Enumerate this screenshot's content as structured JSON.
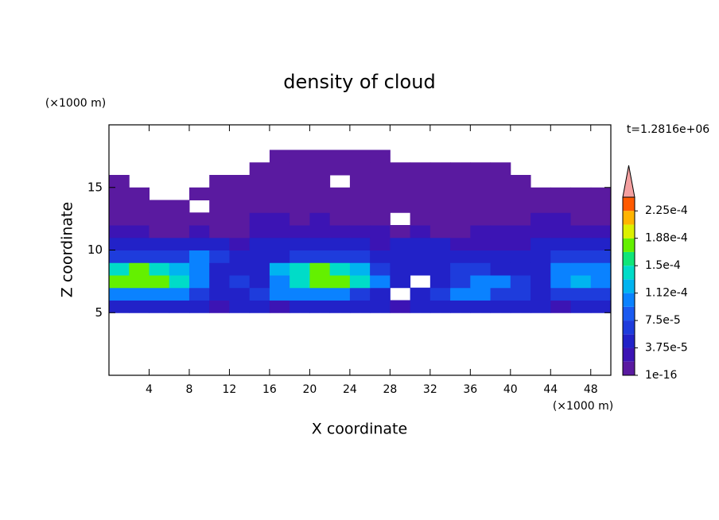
{
  "chart_data": {
    "type": "contour",
    "title": "density of cloud",
    "y_unit": "(×1000 m)",
    "x_unit": "(×1000 m)",
    "ylabel": "Z coordinate",
    "xlabel": "X coordinate",
    "annotation": "t=1.2816e+06",
    "xlim": [
      0,
      50
    ],
    "ylim": [
      0,
      20
    ],
    "xticks": [
      4,
      8,
      12,
      16,
      20,
      24,
      28,
      32,
      36,
      40,
      44,
      48
    ],
    "yticks": [
      5,
      10,
      15
    ],
    "x": [
      1,
      3,
      5,
      7,
      9,
      11,
      13,
      15,
      17,
      19,
      21,
      23,
      25,
      27,
      29,
      31,
      33,
      35,
      37,
      39,
      41,
      43,
      45,
      47,
      49
    ],
    "z": [
      5.5,
      6.5,
      7.5,
      8.5,
      9.5,
      10.5,
      11.5,
      12.5,
      13.5,
      14.5,
      15.5,
      16.5,
      17.5
    ],
    "values": [
      [
        4.5e-05,
        4.5e-05,
        4.5e-05,
        4.5e-05,
        4.5e-05,
        2.5e-05,
        4.5e-05,
        4.5e-05,
        2.5e-05,
        4.5e-05,
        4.5e-05,
        4.5e-05,
        4.5e-05,
        4.5e-05,
        2.5e-05,
        4.5e-05,
        4.5e-05,
        4.5e-05,
        4.5e-05,
        4.5e-05,
        4.5e-05,
        4.5e-05,
        2.5e-05,
        4.5e-05,
        4.5e-05
      ],
      [
        0.0001,
        0.0001,
        0.0001,
        0.0001,
        7e-05,
        4.5e-05,
        4.5e-05,
        7e-05,
        0.0001,
        0.0001,
        0.0001,
        0.0001,
        7e-05,
        4.5e-05,
        null,
        4.5e-05,
        7e-05,
        0.0001,
        0.0001,
        7e-05,
        7e-05,
        4.5e-05,
        7e-05,
        7e-05,
        7e-05
      ],
      [
        0.00017,
        0.00017,
        0.00017,
        0.00014,
        0.0001,
        4.5e-05,
        7e-05,
        4.5e-05,
        0.0001,
        0.00014,
        0.00017,
        0.00017,
        0.00014,
        0.0001,
        4.5e-05,
        null,
        4.5e-05,
        7e-05,
        0.0001,
        0.0001,
        7e-05,
        4.5e-05,
        0.0001,
        0.00012,
        0.0001
      ],
      [
        0.00014,
        0.00017,
        0.00014,
        0.00012,
        0.0001,
        4.5e-05,
        4.5e-05,
        4.5e-05,
        0.00012,
        0.00014,
        0.00017,
        0.00014,
        0.00012,
        7e-05,
        4.5e-05,
        4.5e-05,
        4.5e-05,
        7e-05,
        7e-05,
        4.5e-05,
        4.5e-05,
        4.5e-05,
        0.0001,
        0.0001,
        0.0001
      ],
      [
        7e-05,
        7e-05,
        7e-05,
        7e-05,
        0.0001,
        7e-05,
        4.5e-05,
        4.5e-05,
        4.5e-05,
        7e-05,
        7e-05,
        7e-05,
        7e-05,
        4.5e-05,
        4.5e-05,
        4.5e-05,
        4.5e-05,
        4.5e-05,
        4.5e-05,
        4.5e-05,
        4.5e-05,
        4.5e-05,
        7e-05,
        7e-05,
        7e-05
      ],
      [
        4.5e-05,
        4.5e-05,
        4.5e-05,
        4.5e-05,
        4.5e-05,
        4.5e-05,
        2.5e-05,
        4.5e-05,
        4.5e-05,
        4.5e-05,
        4.5e-05,
        4.5e-05,
        4.5e-05,
        2.5e-05,
        4.5e-05,
        4.5e-05,
        4.5e-05,
        2.5e-05,
        2.5e-05,
        2.5e-05,
        2.5e-05,
        4.5e-05,
        4.5e-05,
        4.5e-05,
        4.5e-05
      ],
      [
        2.5e-05,
        2.5e-05,
        1e-06,
        1e-06,
        2.5e-05,
        1e-06,
        1e-06,
        2.5e-05,
        2.5e-05,
        2.5e-05,
        2.5e-05,
        2.5e-05,
        2.5e-05,
        2.5e-05,
        1e-06,
        2.5e-05,
        1e-06,
        1e-06,
        2.5e-05,
        2.5e-05,
        2.5e-05,
        2.5e-05,
        2.5e-05,
        2.5e-05,
        2.5e-05
      ],
      [
        1e-06,
        1e-06,
        1e-06,
        1e-06,
        1e-06,
        1e-06,
        1e-06,
        2.5e-05,
        2.5e-05,
        1e-06,
        2.5e-05,
        1e-06,
        1e-06,
        1e-06,
        null,
        1e-06,
        1e-06,
        1e-06,
        1e-06,
        1e-06,
        1e-06,
        2.5e-05,
        2.5e-05,
        1e-06,
        1e-06
      ],
      [
        1e-06,
        1e-06,
        1e-06,
        1e-06,
        null,
        1e-06,
        1e-06,
        1e-06,
        1e-06,
        1e-06,
        1e-06,
        1e-06,
        1e-06,
        1e-06,
        1e-06,
        1e-06,
        1e-06,
        1e-06,
        1e-06,
        1e-06,
        1e-06,
        1e-06,
        1e-06,
        1e-06,
        1e-06
      ],
      [
        1e-06,
        1e-06,
        null,
        null,
        1e-06,
        1e-06,
        1e-06,
        1e-06,
        1e-06,
        1e-06,
        1e-06,
        1e-06,
        1e-06,
        1e-06,
        1e-06,
        1e-06,
        1e-06,
        1e-06,
        1e-06,
        1e-06,
        1e-06,
        1e-06,
        1e-06,
        1e-06,
        1e-06
      ],
      [
        1e-06,
        null,
        null,
        null,
        null,
        1e-06,
        1e-06,
        1e-06,
        1e-06,
        1e-06,
        1e-06,
        null,
        1e-06,
        1e-06,
        1e-06,
        1e-06,
        1e-06,
        1e-06,
        1e-06,
        1e-06,
        1e-06,
        null,
        null,
        null,
        null
      ],
      [
        null,
        null,
        null,
        null,
        null,
        null,
        null,
        1e-06,
        1e-06,
        1e-06,
        1e-06,
        1e-06,
        1e-06,
        1e-06,
        1e-06,
        1e-06,
        1e-06,
        1e-06,
        1e-06,
        1e-06,
        null,
        null,
        null,
        null,
        null
      ],
      [
        null,
        null,
        null,
        null,
        null,
        null,
        null,
        null,
        1e-06,
        1e-06,
        1e-06,
        1e-06,
        1e-06,
        1e-06,
        null,
        null,
        null,
        null,
        null,
        null,
        null,
        null,
        null,
        null,
        null
      ]
    ],
    "colorbar": {
      "clim": [
        1e-16,
        0.00024375
      ],
      "levels": [
        1e-16,
        1.875e-05,
        3.75e-05,
        5.625e-05,
        7.5e-05,
        9.375e-05,
        0.0001125,
        0.00013125,
        0.00015,
        0.00016875,
        0.0001875,
        0.00020625,
        0.000225
      ],
      "colors": [
        "#5a1aa0",
        "#3c14b4",
        "#2222c8",
        "#1e3cdc",
        "#1a5af0",
        "#0a82ff",
        "#00b4f0",
        "#00dcc8",
        "#10e678",
        "#64f000",
        "#dcf000",
        "#ffb400",
        "#ff5a00"
      ],
      "over_color": "#f4a0a0",
      "ticks": [
        1e-16,
        {
          "value": 3.75e-05,
          "label": "3.75e-5"
        },
        {
          "value": 7.5e-05,
          "label": "7.5e-5"
        },
        {
          "value": 0.0001125,
          "label": "1.12e-4"
        },
        {
          "value": 0.00015,
          "label": "1.5e-4"
        },
        {
          "value": 0.0001875,
          "label": "1.88e-4"
        },
        {
          "value": 0.000225,
          "label": "2.25e-4"
        }
      ]
    }
  }
}
